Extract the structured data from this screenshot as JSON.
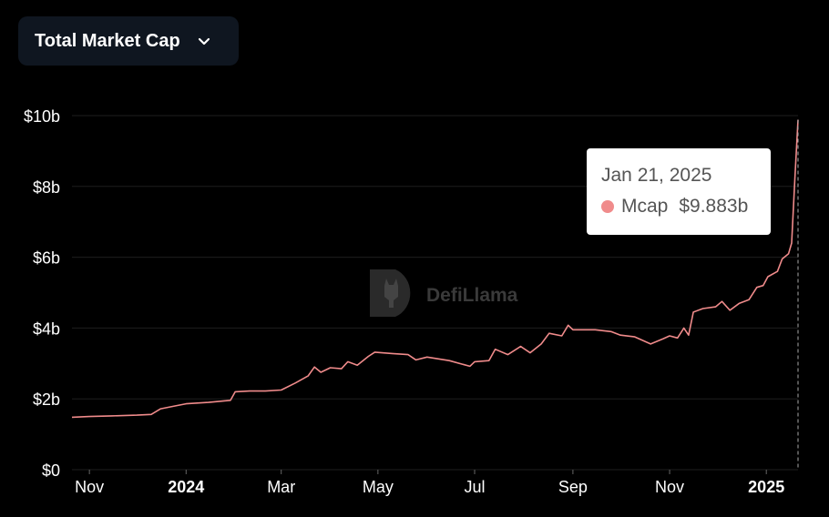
{
  "selector": {
    "label": "Total Market Cap",
    "icon": "chevron-down-icon"
  },
  "watermark": {
    "text": "DefiLlama",
    "icon": "llama-logo-icon"
  },
  "tooltip": {
    "date": "Jan 21, 2025",
    "series": "Mcap",
    "value": "$9.883b",
    "color": "#f08b8b"
  },
  "colors": {
    "line": "#f08b8b",
    "grid": "#1e1e1e",
    "text": "#ffffff",
    "background": "#000000"
  },
  "chart_data": {
    "type": "line",
    "title": "",
    "xlabel": "",
    "ylabel": "",
    "ylim": [
      0,
      10
    ],
    "y_unit": "billions USD",
    "grid": "horizontal",
    "y_ticks": [
      {
        "value": 0,
        "label": "$0"
      },
      {
        "value": 2,
        "label": "$2b"
      },
      {
        "value": 4,
        "label": "$4b"
      },
      {
        "value": 6,
        "label": "$6b"
      },
      {
        "value": 8,
        "label": "$8b"
      },
      {
        "value": 10,
        "label": "$10b"
      }
    ],
    "xlim": [
      "2023-10-21",
      "2025-01-21"
    ],
    "x_ticks": [
      {
        "value": "2023-11-01",
        "label": "Nov",
        "bold": false
      },
      {
        "value": "2024-01-01",
        "label": "2024",
        "bold": true
      },
      {
        "value": "2024-03-01",
        "label": "Mar",
        "bold": false
      },
      {
        "value": "2024-05-01",
        "label": "May",
        "bold": false
      },
      {
        "value": "2024-07-01",
        "label": "Jul",
        "bold": false
      },
      {
        "value": "2024-09-01",
        "label": "Sep",
        "bold": false
      },
      {
        "value": "2024-11-01",
        "label": "Nov",
        "bold": false
      },
      {
        "value": "2025-01-01",
        "label": "2025",
        "bold": true
      }
    ],
    "series": [
      {
        "name": "Mcap",
        "points": [
          [
            "2023-10-21",
            1.48
          ],
          [
            "2023-11-01",
            1.5
          ],
          [
            "2023-11-15",
            1.52
          ],
          [
            "2023-12-01",
            1.54
          ],
          [
            "2023-12-10",
            1.56
          ],
          [
            "2023-12-16",
            1.72
          ],
          [
            "2023-12-25",
            1.8
          ],
          [
            "2024-01-01",
            1.86
          ],
          [
            "2024-01-15",
            1.9
          ],
          [
            "2024-01-29",
            1.96
          ],
          [
            "2024-02-01",
            2.2
          ],
          [
            "2024-02-10",
            2.22
          ],
          [
            "2024-02-20",
            2.22
          ],
          [
            "2024-03-01",
            2.25
          ],
          [
            "2024-03-10",
            2.45
          ],
          [
            "2024-03-18",
            2.65
          ],
          [
            "2024-03-22",
            2.9
          ],
          [
            "2024-03-26",
            2.75
          ],
          [
            "2024-04-01",
            2.88
          ],
          [
            "2024-04-08",
            2.85
          ],
          [
            "2024-04-12",
            3.05
          ],
          [
            "2024-04-18",
            2.95
          ],
          [
            "2024-04-25",
            3.2
          ],
          [
            "2024-04-29",
            3.32
          ],
          [
            "2024-05-10",
            3.28
          ],
          [
            "2024-05-20",
            3.25
          ],
          [
            "2024-05-25",
            3.1
          ],
          [
            "2024-06-01",
            3.18
          ],
          [
            "2024-06-15",
            3.08
          ],
          [
            "2024-06-28",
            2.92
          ],
          [
            "2024-07-01",
            3.05
          ],
          [
            "2024-07-10",
            3.08
          ],
          [
            "2024-07-14",
            3.4
          ],
          [
            "2024-07-22",
            3.25
          ],
          [
            "2024-07-30",
            3.48
          ],
          [
            "2024-08-05",
            3.3
          ],
          [
            "2024-08-12",
            3.55
          ],
          [
            "2024-08-17",
            3.85
          ],
          [
            "2024-08-25",
            3.78
          ],
          [
            "2024-08-29",
            4.08
          ],
          [
            "2024-09-01",
            3.95
          ],
          [
            "2024-09-15",
            3.95
          ],
          [
            "2024-09-25",
            3.9
          ],
          [
            "2024-10-01",
            3.8
          ],
          [
            "2024-10-10",
            3.75
          ],
          [
            "2024-10-20",
            3.55
          ],
          [
            "2024-10-28",
            3.7
          ],
          [
            "2024-11-01",
            3.78
          ],
          [
            "2024-11-06",
            3.72
          ],
          [
            "2024-11-10",
            4.0
          ],
          [
            "2024-11-13",
            3.8
          ],
          [
            "2024-11-16",
            4.45
          ],
          [
            "2024-11-22",
            4.55
          ],
          [
            "2024-11-30",
            4.6
          ],
          [
            "2024-12-04",
            4.75
          ],
          [
            "2024-12-09",
            4.5
          ],
          [
            "2024-12-15",
            4.7
          ],
          [
            "2024-12-21",
            4.8
          ],
          [
            "2024-12-26",
            5.15
          ],
          [
            "2024-12-30",
            5.2
          ],
          [
            "2025-01-02",
            5.45
          ],
          [
            "2025-01-08",
            5.6
          ],
          [
            "2025-01-11",
            5.95
          ],
          [
            "2025-01-15",
            6.1
          ],
          [
            "2025-01-17",
            6.4
          ],
          [
            "2025-01-19",
            8.2
          ],
          [
            "2025-01-21",
            9.883
          ]
        ]
      }
    ]
  }
}
